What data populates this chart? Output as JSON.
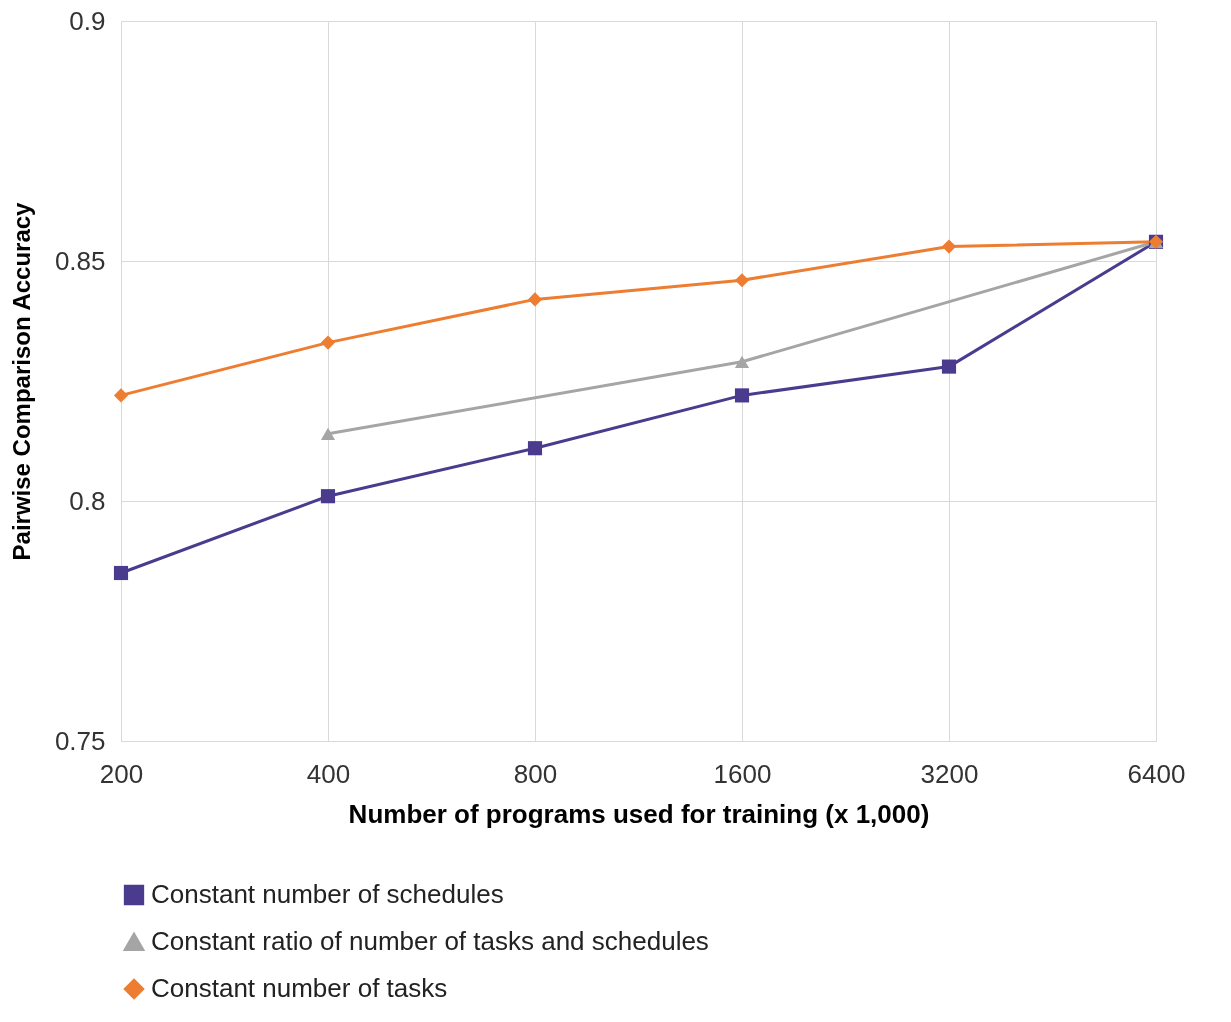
{
  "chart_data": {
    "type": "line",
    "xlabel": "Number of programs used for training (x 1,000)",
    "ylabel": "Pairwise Comparison Accuracy",
    "categories": [
      "200",
      "400",
      "800",
      "1600",
      "3200",
      "6400"
    ],
    "series": [
      {
        "name": "Constant number of  schedules",
        "color": "#4b3b8f",
        "marker": "square",
        "values": [
          0.785,
          0.801,
          0.811,
          0.822,
          0.828,
          0.854
        ]
      },
      {
        "name": "Constant ratio of number of tasks and schedules",
        "color": "#a5a5a5",
        "marker": "triangle",
        "values": [
          null,
          0.814,
          null,
          0.829,
          null,
          0.854
        ]
      },
      {
        "name": "Constant number of tasks",
        "color": "#ed7d31",
        "marker": "diamond",
        "values": [
          0.822,
          0.833,
          0.842,
          0.846,
          0.853,
          0.854
        ]
      }
    ],
    "ylim": [
      0.75,
      0.9
    ],
    "yticks": [
      0.75,
      0.8,
      0.85,
      0.9
    ],
    "grid": true,
    "legend": "bottom"
  }
}
